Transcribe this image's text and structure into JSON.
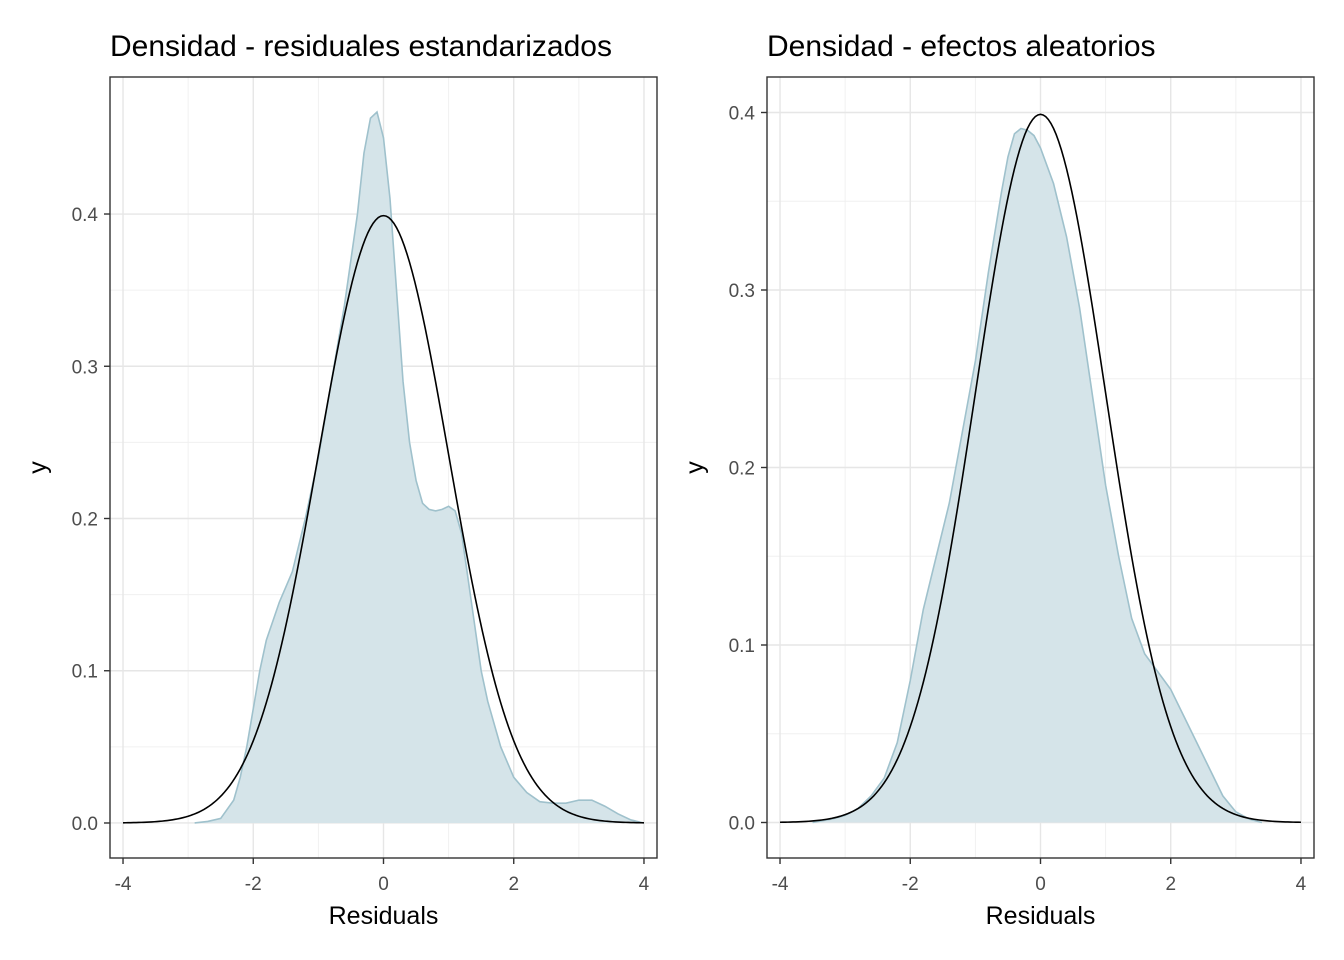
{
  "chart_data": [
    {
      "type": "area",
      "title": "Densidad - residuales estandarizados",
      "xlabel": "Residuals",
      "ylabel": "y",
      "xlim": [
        -4.2,
        4.2
      ],
      "ylim": [
        -0.023,
        0.49
      ],
      "x_ticks": [
        -4,
        -2,
        0,
        2,
        4
      ],
      "x_tick_labels": [
        "-4",
        "-2",
        "0",
        "2",
        "4"
      ],
      "y_ticks": [
        0.0,
        0.1,
        0.2,
        0.3,
        0.4
      ],
      "y_tick_labels": [
        "0.0",
        "0.1",
        "0.2",
        "0.3",
        "0.4"
      ],
      "grid": true,
      "series": [
        {
          "kind": "density",
          "fill": "#d5e4e9",
          "stroke": "#9fc1cc",
          "x": [
            -2.9,
            -2.7,
            -2.5,
            -2.3,
            -2.2,
            -2.1,
            -2.0,
            -1.9,
            -1.8,
            -1.6,
            -1.5,
            -1.4,
            -1.2,
            -1.0,
            -0.8,
            -0.6,
            -0.4,
            -0.3,
            -0.2,
            -0.1,
            0.0,
            0.1,
            0.2,
            0.3,
            0.4,
            0.5,
            0.6,
            0.7,
            0.8,
            0.9,
            1.0,
            1.1,
            1.2,
            1.3,
            1.4,
            1.5,
            1.6,
            1.8,
            2.0,
            2.2,
            2.4,
            2.6,
            2.8,
            3.0,
            3.2,
            3.4,
            3.6,
            3.8,
            4.0
          ],
          "y": [
            0.0,
            0.001,
            0.003,
            0.015,
            0.03,
            0.05,
            0.075,
            0.1,
            0.12,
            0.145,
            0.155,
            0.165,
            0.2,
            0.24,
            0.29,
            0.34,
            0.4,
            0.44,
            0.463,
            0.467,
            0.45,
            0.41,
            0.35,
            0.29,
            0.25,
            0.225,
            0.21,
            0.206,
            0.205,
            0.206,
            0.208,
            0.205,
            0.19,
            0.16,
            0.13,
            0.1,
            0.08,
            0.05,
            0.03,
            0.02,
            0.014,
            0.013,
            0.013,
            0.015,
            0.015,
            0.011,
            0.006,
            0.002,
            0.0
          ]
        },
        {
          "kind": "normal",
          "stroke": "#000000",
          "mean": 0,
          "sd": 1,
          "x_range": [
            -4,
            4
          ]
        }
      ]
    },
    {
      "type": "area",
      "title": "Densidad - efectos aleatorios",
      "xlabel": "Residuals",
      "ylabel": "y",
      "xlim": [
        -4.2,
        4.2
      ],
      "ylim": [
        -0.02,
        0.42
      ],
      "x_ticks": [
        -4,
        -2,
        0,
        2,
        4
      ],
      "x_tick_labels": [
        "-4",
        "-2",
        "0",
        "2",
        "4"
      ],
      "y_ticks": [
        0.0,
        0.1,
        0.2,
        0.3,
        0.4
      ],
      "y_tick_labels": [
        "0.0",
        "0.1",
        "0.2",
        "0.3",
        "0.4"
      ],
      "grid": true,
      "series": [
        {
          "kind": "density",
          "fill": "#d5e4e9",
          "stroke": "#9fc1cc",
          "x": [
            -3.5,
            -3.2,
            -3.0,
            -2.8,
            -2.6,
            -2.4,
            -2.2,
            -2.0,
            -1.8,
            -1.6,
            -1.4,
            -1.2,
            -1.0,
            -0.8,
            -0.6,
            -0.5,
            -0.4,
            -0.3,
            -0.2,
            -0.1,
            0.0,
            0.2,
            0.4,
            0.6,
            0.8,
            1.0,
            1.2,
            1.4,
            1.6,
            1.8,
            2.0,
            2.2,
            2.4,
            2.6,
            2.8,
            3.0,
            3.2,
            3.4
          ],
          "y": [
            0.0,
            0.002,
            0.004,
            0.008,
            0.015,
            0.025,
            0.045,
            0.08,
            0.12,
            0.15,
            0.18,
            0.22,
            0.26,
            0.31,
            0.355,
            0.375,
            0.388,
            0.391,
            0.39,
            0.387,
            0.38,
            0.36,
            0.33,
            0.29,
            0.24,
            0.19,
            0.15,
            0.115,
            0.095,
            0.085,
            0.075,
            0.06,
            0.045,
            0.03,
            0.015,
            0.006,
            0.002,
            0.0
          ]
        },
        {
          "kind": "normal",
          "stroke": "#000000",
          "mean": 0,
          "sd": 1,
          "x_range": [
            -4,
            4
          ]
        }
      ]
    }
  ]
}
